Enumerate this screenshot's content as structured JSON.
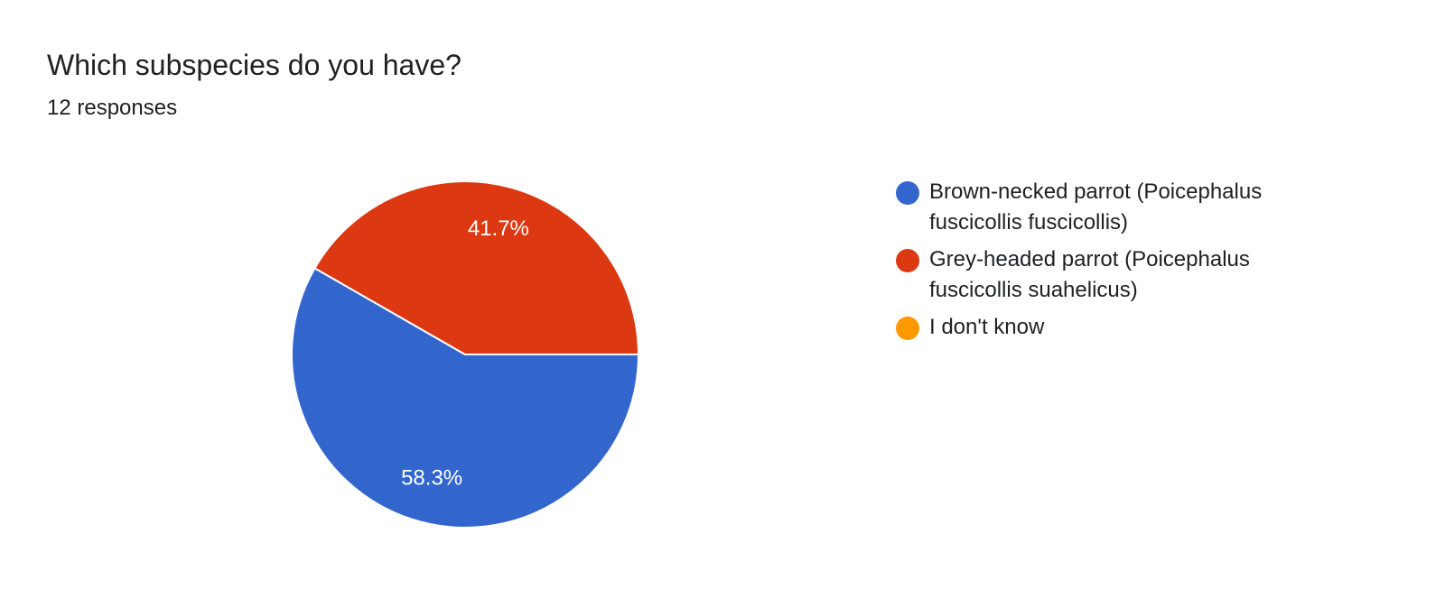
{
  "chart_data": {
    "type": "pie",
    "title": "Which subspecies do you have?",
    "subtitle": "12 responses",
    "categories": [
      "Brown-necked parrot (Poicephalus fuscicollis fuscicollis)",
      "Grey-headed parrot (Poicephalus fuscicollis suahelicus)",
      "I don't know"
    ],
    "values": [
      58.3,
      41.7,
      0
    ],
    "value_labels": [
      "58.3%",
      "41.7%",
      null
    ],
    "colors": [
      "#3366cc",
      "#dc3912",
      "#ff9900"
    ],
    "legend": "right"
  }
}
